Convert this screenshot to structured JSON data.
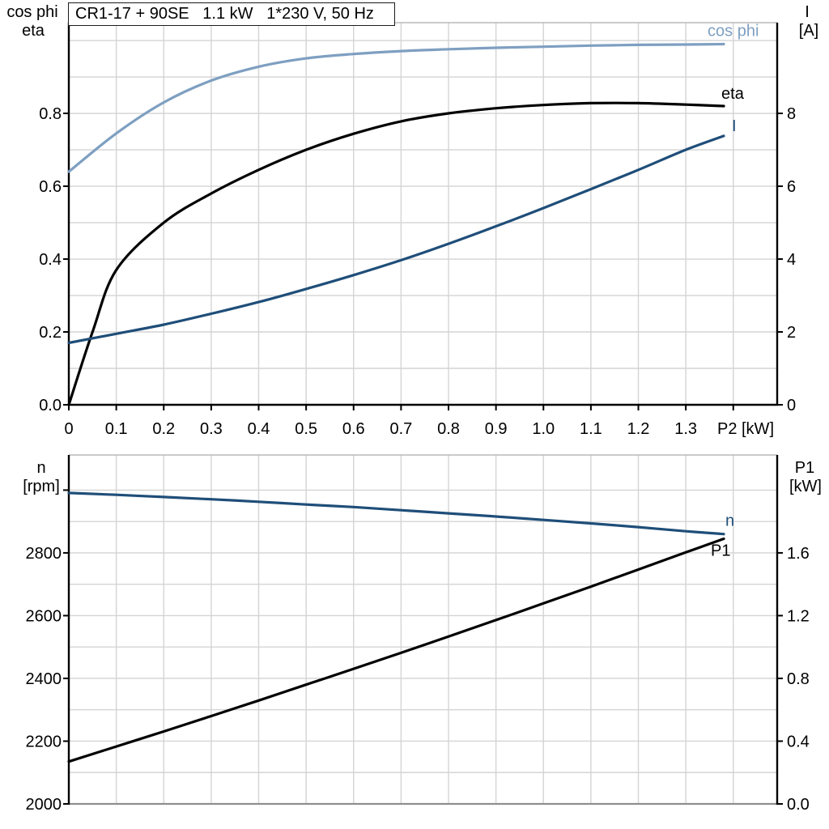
{
  "title": "CR1-17 + 90SE   1.1 kW   1*230 V, 50 Hz",
  "colors": {
    "light_blue": "#7e9fc1",
    "dark_blue": "#1f4e79",
    "black": "#000000",
    "grid": "#d4d4d4",
    "border_gray": "#8f8f8f",
    "background": "#ffffff"
  },
  "chart_data": [
    {
      "id": "top",
      "type": "line",
      "title": "CR1-17 + 90SE   1.1 kW   1*230 V, 50 Hz",
      "grid": true,
      "legend_position": "curve-end-labels",
      "x_axis": {
        "label": "P2 [kW]",
        "min": 0,
        "max": 1.4925,
        "ticks": [
          0,
          0.1,
          0.2,
          0.3,
          0.4,
          0.5,
          0.6,
          0.7,
          0.8,
          0.9,
          1.0,
          1.1,
          1.2,
          1.3,
          1.4
        ],
        "tick_labels": [
          "0",
          "0.1",
          "0.2",
          "0.3",
          "0.4",
          "0.5",
          "0.6",
          "0.7",
          "0.8",
          "0.9",
          "1.0",
          "1.1",
          "1.2",
          "1.3",
          null
        ],
        "grid_values": [
          0.1,
          0.2,
          0.3,
          0.4,
          0.5,
          0.6,
          0.7,
          0.8,
          0.9,
          1.0,
          1.1,
          1.2,
          1.3,
          1.4
        ]
      },
      "left_axis": {
        "label_lines": [
          "cos phi",
          "eta"
        ],
        "min": 0,
        "max": 1.049,
        "ticks": [
          0,
          0.2,
          0.4,
          0.6,
          0.8
        ],
        "tick_labels": [
          "0.0",
          "0.2",
          "0.4",
          "0.6",
          "0.8"
        ],
        "grid_values": [
          0.1,
          0.2,
          0.3,
          0.4,
          0.5,
          0.6,
          0.7,
          0.8,
          0.9,
          1.0
        ]
      },
      "right_axis": {
        "label_lines": [
          "I",
          "[A]"
        ],
        "min": 0,
        "max": 10.49,
        "ticks": [
          0,
          2,
          4,
          6,
          8
        ],
        "tick_labels": [
          "0",
          "2",
          "4",
          "6",
          "8"
        ]
      },
      "series": [
        {
          "name": "cos phi",
          "axis": "left",
          "color": "light_blue",
          "label_color": "light_blue",
          "x": [
            0,
            0.1,
            0.2,
            0.3,
            0.4,
            0.5,
            0.6,
            0.7,
            0.8,
            0.9,
            1.0,
            1.1,
            1.2,
            1.3,
            1.38
          ],
          "values": [
            0.64,
            0.745,
            0.83,
            0.89,
            0.928,
            0.951,
            0.963,
            0.971,
            0.976,
            0.98,
            0.983,
            0.986,
            0.988,
            0.989,
            0.99
          ]
        },
        {
          "name": "eta",
          "axis": "left",
          "color": "black",
          "label_color": "black",
          "x": [
            0,
            0.05,
            0.1,
            0.2,
            0.3,
            0.4,
            0.5,
            0.6,
            0.7,
            0.8,
            0.9,
            1.0,
            1.1,
            1.2,
            1.3,
            1.38
          ],
          "values": [
            0,
            0.2,
            0.37,
            0.5,
            0.58,
            0.645,
            0.7,
            0.744,
            0.778,
            0.8,
            0.814,
            0.823,
            0.828,
            0.828,
            0.824,
            0.82
          ]
        },
        {
          "name": "I",
          "axis": "right",
          "color": "dark_blue",
          "label_color": "dark_blue",
          "x": [
            0,
            0.1,
            0.2,
            0.3,
            0.4,
            0.5,
            0.6,
            0.7,
            0.8,
            0.9,
            1.0,
            1.1,
            1.2,
            1.3,
            1.38
          ],
          "values": [
            1.7,
            1.95,
            2.2,
            2.5,
            2.82,
            3.18,
            3.56,
            3.97,
            4.42,
            4.9,
            5.4,
            5.92,
            6.45,
            7.0,
            7.38
          ]
        }
      ]
    },
    {
      "id": "bottom",
      "type": "line",
      "title": "",
      "grid": true,
      "legend_position": "curve-end-labels",
      "x_axis": {
        "label": "",
        "min": 0,
        "max": 1.4925,
        "ticks": [],
        "tick_labels": [],
        "grid_values": [
          0.1,
          0.2,
          0.3,
          0.4,
          0.5,
          0.6,
          0.7,
          0.8,
          0.9,
          1.0,
          1.1,
          1.2,
          1.3,
          1.4
        ]
      },
      "left_axis": {
        "label_lines": [
          "n",
          "[rpm]"
        ],
        "min": 2000,
        "max": 3112,
        "ticks": [
          2000,
          2200,
          2400,
          2600,
          2800,
          3000
        ],
        "tick_labels": [
          "2000",
          "2200",
          "2400",
          "2600",
          "2800",
          null
        ],
        "grid_values": [
          2100,
          2200,
          2300,
          2400,
          2500,
          2600,
          2700,
          2800,
          2900,
          3000
        ]
      },
      "right_axis": {
        "label_lines": [
          "P1",
          "[kW]"
        ],
        "min": 0,
        "max": 2.224,
        "ticks": [
          0,
          0.4,
          0.8,
          1.2,
          1.6
        ],
        "tick_labels": [
          "0.0",
          "0.4",
          "0.8",
          "1.2",
          "1.6"
        ]
      },
      "series": [
        {
          "name": "n",
          "axis": "left",
          "color": "dark_blue",
          "label_color": "dark_blue",
          "x": [
            0,
            0.1,
            0.2,
            0.3,
            0.4,
            0.5,
            0.6,
            0.7,
            0.8,
            0.9,
            1.0,
            1.1,
            1.2,
            1.3,
            1.38
          ],
          "values": [
            2991,
            2985,
            2978,
            2971,
            2963,
            2954,
            2946,
            2936,
            2926,
            2916,
            2905,
            2894,
            2882,
            2869,
            2860
          ]
        },
        {
          "name": "P1",
          "axis": "right",
          "color": "black",
          "label_color": "black",
          "x": [
            0,
            0.1,
            0.2,
            0.3,
            0.4,
            0.5,
            0.6,
            0.7,
            0.8,
            0.9,
            1.0,
            1.1,
            1.2,
            1.3,
            1.38
          ],
          "values": [
            0.27,
            0.366,
            0.462,
            0.56,
            0.659,
            0.76,
            0.861,
            0.963,
            1.067,
            1.172,
            1.278,
            1.385,
            1.494,
            1.603,
            1.69
          ]
        }
      ]
    }
  ]
}
